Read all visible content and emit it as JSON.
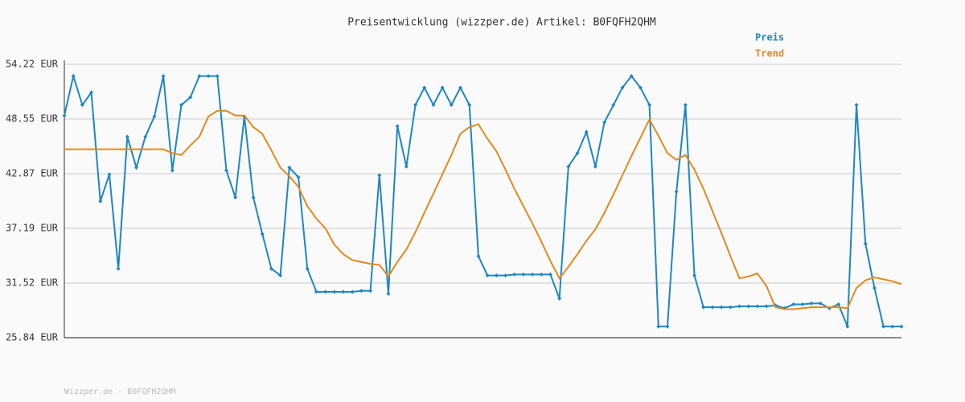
{
  "chart_data": {
    "type": "line",
    "title": "Preisentwicklung (wizzper.de) Artikel: B0FQFH2QHM",
    "footer": "Wizzper.de - B0FQFH2QHM",
    "categories": [
      null,
      null,
      null,
      null,
      null,
      null,
      null,
      null,
      null,
      null,
      null,
      null,
      null,
      null,
      null,
      null,
      null,
      null,
      null,
      null,
      null,
      null,
      null,
      null,
      null,
      null,
      null,
      null,
      null,
      null,
      null,
      null,
      null,
      null,
      null,
      null,
      null,
      null,
      null,
      null,
      null,
      null,
      null,
      null,
      null,
      null,
      null,
      null,
      null,
      null,
      null,
      null,
      null,
      null,
      null,
      null,
      null,
      null,
      null,
      null,
      null,
      null,
      null,
      null,
      null,
      null,
      null,
      null,
      null,
      null,
      null,
      null,
      null,
      null,
      null,
      null,
      null,
      null,
      null,
      null,
      null,
      null,
      null,
      null,
      null,
      null,
      null,
      null,
      null,
      null,
      null,
      null,
      null,
      null
    ],
    "series": [
      {
        "name": "Preis",
        "color": "#1f86c4",
        "values": [
          48.9,
          53,
          50,
          51.3,
          40,
          42.8,
          33,
          46.7,
          43.5,
          46.7,
          48.8,
          53,
          43.2,
          50,
          50.8,
          53,
          53,
          53,
          43.2,
          40.4,
          48.8,
          40.4,
          36.6,
          33,
          32.3,
          43.5,
          42.5,
          33,
          30.6,
          30.6,
          30.6,
          30.6,
          30.6,
          30.7,
          30.7,
          42.7,
          30.4,
          47.8,
          43.6,
          50,
          51.8,
          50,
          51.8,
          50,
          51.8,
          50,
          34.3,
          32.3,
          32.3,
          32.3,
          32.4,
          32.4,
          32.4,
          32.4,
          32.4,
          29.9,
          43.6,
          45,
          47.2,
          43.6,
          48.2,
          50,
          51.8,
          53,
          51.8,
          50,
          27,
          27,
          41,
          50,
          32.3,
          29,
          29,
          29,
          29,
          29.1,
          29.1,
          29.1,
          29.1,
          29.2,
          28.9,
          29.3,
          29.3,
          29.4,
          29.4,
          28.9,
          29.3,
          27,
          50,
          35.6,
          31,
          27,
          27,
          27
        ]
      },
      {
        "name": "Trend",
        "color": "#e08a1e",
        "values": [
          45.4,
          45.4,
          45.4,
          45.4,
          45.4,
          45.4,
          45.4,
          45.4,
          45.4,
          45.4,
          45.4,
          45.4,
          45,
          44.8,
          45.8,
          46.7,
          48.8,
          49.4,
          49.4,
          48.9,
          48.9,
          47.7,
          47,
          45.3,
          43.5,
          42.6,
          41.5,
          39.5,
          38.2,
          37.2,
          35.5,
          34.5,
          33.9,
          33.7,
          33.5,
          33.4,
          32.2,
          33.7,
          35,
          36.8,
          38.8,
          40.8,
          42.8,
          44.8,
          47,
          47.7,
          48,
          46.5,
          45.2,
          43.3,
          41.3,
          39.5,
          37.7,
          35.8,
          33.8,
          32,
          33.2,
          34.5,
          35.9,
          37.1,
          38.8,
          40.7,
          42.7,
          44.7,
          46.6,
          48.5,
          46.8,
          45,
          44.3,
          44.8,
          43.3,
          41.3,
          39,
          36.7,
          34.3,
          32,
          32.2,
          32.5,
          31.2,
          29,
          28.8,
          28.8,
          28.9,
          29,
          29,
          29,
          29,
          28.9,
          31,
          31.8,
          32.1,
          31.9,
          31.7,
          31.4
        ]
      }
    ],
    "ylim": [
      25.84,
      54.22
    ],
    "yticks": [
      {
        "value": 25.84,
        "label": "25.84 EUR"
      },
      {
        "value": 31.52,
        "label": "31.52 EUR"
      },
      {
        "value": 37.19,
        "label": "37.19 EUR"
      },
      {
        "value": 42.87,
        "label": "42.87 EUR"
      },
      {
        "value": 48.55,
        "label": "48.55 EUR"
      },
      {
        "value": 54.22,
        "label": "54.22 EUR"
      }
    ],
    "grid": true
  }
}
